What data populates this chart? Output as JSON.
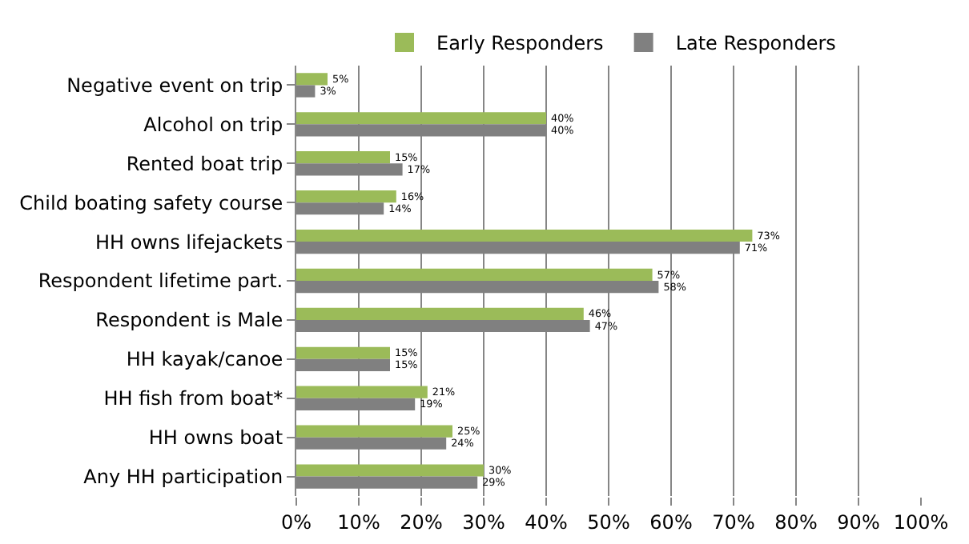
{
  "chart_data": {
    "type": "bar",
    "orientation": "horizontal",
    "categories": [
      "Negative event on trip",
      "Alcohol on trip",
      "Rented boat trip",
      "Child boating safety course",
      "HH owns lifejackets",
      "Respondent lifetime part.",
      "Respondent is Male",
      "HH kayak/canoe",
      "HH fish from boat*",
      "HH owns boat",
      "Any HH participation"
    ],
    "series": [
      {
        "name": "Early Responders",
        "color": "#9bbb59",
        "values": [
          5,
          40,
          15,
          16,
          73,
          57,
          46,
          15,
          21,
          25,
          30
        ],
        "value_labels": [
          "5%",
          "40%",
          "15%",
          "16%",
          "73%",
          "57%",
          "46%",
          "15%",
          "21%",
          "25%",
          "30%"
        ]
      },
      {
        "name": "Late Responders",
        "color": "#808080",
        "values": [
          3,
          40,
          17,
          14,
          71,
          58,
          47,
          15,
          19,
          24,
          29
        ],
        "value_labels": [
          "3%",
          "40%",
          "17%",
          "14%",
          "71%",
          "58%",
          "47%",
          "15%",
          "19%",
          "24%",
          "29%"
        ]
      }
    ],
    "xlim": [
      0,
      100
    ],
    "xticks": [
      {
        "value": 0,
        "label": "0%"
      },
      {
        "value": 10,
        "label": "10%"
      },
      {
        "value": 20,
        "label": "20%"
      },
      {
        "value": 30,
        "label": "30%"
      },
      {
        "value": 40,
        "label": "40%"
      },
      {
        "value": 50,
        "label": "50%"
      },
      {
        "value": 60,
        "label": "60%"
      },
      {
        "value": 70,
        "label": "70%"
      },
      {
        "value": 80,
        "label": "80%"
      },
      {
        "value": 90,
        "label": "90%"
      },
      {
        "value": 100,
        "label": "100%"
      }
    ],
    "grid": "x",
    "legend": "top"
  }
}
